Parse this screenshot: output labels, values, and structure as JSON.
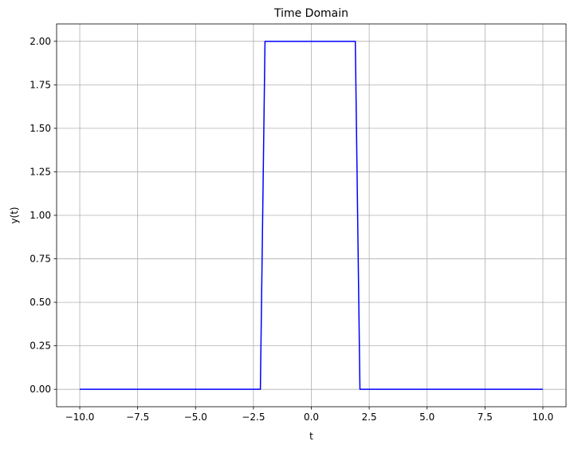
{
  "chart_data": {
    "type": "line",
    "title": "Time Domain",
    "xlabel": "t",
    "ylabel": "y(t)",
    "xlim": [
      -11.0,
      11.0
    ],
    "ylim": [
      -0.1,
      2.1
    ],
    "grid": true,
    "x_ticks": [
      -10.0,
      -7.5,
      -5.0,
      -2.5,
      0.0,
      2.5,
      5.0,
      7.5,
      10.0
    ],
    "x_tick_labels": [
      "−10.0",
      "−7.5",
      "−5.0",
      "−2.5",
      "0.0",
      "2.5",
      "5.0",
      "7.5",
      "10.0"
    ],
    "y_ticks": [
      0.0,
      0.25,
      0.5,
      0.75,
      1.0,
      1.25,
      1.5,
      1.75,
      2.0
    ],
    "y_tick_labels": [
      "0.00",
      "0.25",
      "0.50",
      "0.75",
      "1.00",
      "1.25",
      "1.50",
      "1.75",
      "2.00"
    ],
    "series": [
      {
        "color": "#0000ff",
        "x": [
          -10.0,
          -2.2,
          -2.0,
          1.9,
          2.1,
          10.0
        ],
        "y": [
          0.0,
          0.0,
          2.0,
          2.0,
          0.0,
          0.0
        ]
      }
    ]
  }
}
